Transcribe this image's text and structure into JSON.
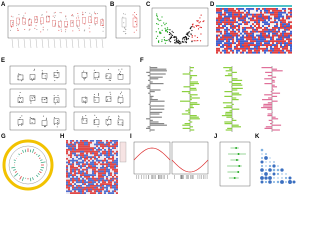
{
  "panels": [
    {
      "label": "A"
    },
    {
      "label": "B"
    },
    {
      "label": "C"
    },
    {
      "label": "D"
    },
    {
      "label": "E"
    },
    {
      "label": "F"
    },
    {
      "label": "G"
    },
    {
      "label": "H"
    },
    {
      "label": "I"
    },
    {
      "label": "J"
    },
    {
      "label": "K"
    }
  ]
}
